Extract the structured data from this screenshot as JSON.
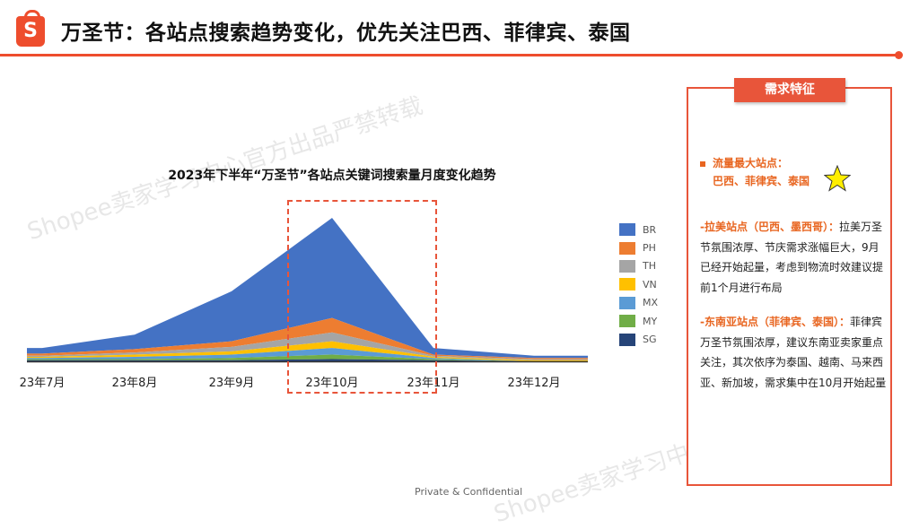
{
  "header": {
    "logo_letter": "S",
    "title": "万圣节：各站点搜索趋势变化，优先关注巴西、菲律宾、泰国"
  },
  "watermark": {
    "text_1": "Shopee卖家学习中心官方出品严禁转载",
    "text_2": "Shopee卖家学习中心官方出品严禁转载"
  },
  "chart_data": {
    "type": "area",
    "stacked": true,
    "title": "2023年下半年“万圣节”各站点关键词搜索量月度变化趋势",
    "categories": [
      "23年7月",
      "23年8月",
      "23年9月",
      "23年10月",
      "23年11月",
      "23年12月"
    ],
    "y_axis_shown": false,
    "series": [
      {
        "name": "BR",
        "color": "#4472c4",
        "values": [
          5,
          13,
          45,
          90,
          6,
          2
        ]
      },
      {
        "name": "PH",
        "color": "#ed7d31",
        "values": [
          2,
          3,
          5,
          13,
          1,
          1
        ]
      },
      {
        "name": "TH",
        "color": "#a5a5a5",
        "values": [
          1,
          2,
          4,
          8,
          1,
          1
        ]
      },
      {
        "name": "VN",
        "color": "#ffc000",
        "values": [
          1,
          2,
          3,
          6,
          1,
          1
        ]
      },
      {
        "name": "MX",
        "color": "#5b9bd5",
        "values": [
          1,
          2,
          3,
          6,
          1,
          0
        ]
      },
      {
        "name": "MY",
        "color": "#70ad47",
        "values": [
          1,
          1,
          2,
          4,
          1,
          0
        ]
      },
      {
        "name": "SG",
        "color": "#264478",
        "values": [
          1,
          1,
          1,
          2,
          1,
          0
        ]
      }
    ],
    "legend_position": "right",
    "highlight_category": "23年10月",
    "highlight_style": "red dashed box"
  },
  "panel": {
    "header": "需求特征",
    "bullet_title": "流量最大站点：",
    "bullet_sites": "巴西、菲律宾、泰国",
    "latam_heading": "-拉美站点（巴西、墨西哥）：",
    "latam_text": "拉美万圣节氛围浓厚、节庆需求涨幅巨大，9月已经开始起量，考虑到物流时效建议提前1个月进行布局",
    "sea_heading": "-东南亚站点（菲律宾、泰国）：",
    "sea_text": "菲律宾万圣节氛围浓厚，建议东南亚卖家重点关注，其次依序为泰国、越南、马来西亚、新加坡，需求集中在10月开始起量",
    "star_color": "#ffee00"
  },
  "footer": {
    "text": "Private & Confidential"
  },
  "colors": {
    "brand": "#ee4d2d",
    "accent": "#e86520"
  }
}
